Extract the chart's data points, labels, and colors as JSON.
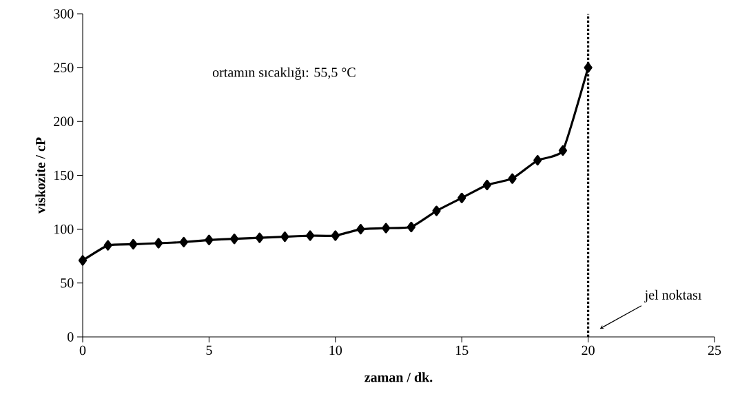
{
  "chart_data": {
    "type": "line",
    "xlabel": "zaman / dk.",
    "ylabel": "viskozite / cP",
    "x": [
      0,
      1,
      2,
      3,
      4,
      5,
      6,
      7,
      8,
      9,
      10,
      11,
      12,
      13,
      14,
      15,
      16,
      17,
      18,
      19,
      20
    ],
    "xlim": [
      0,
      25
    ],
    "xticks": [
      0,
      5,
      10,
      15,
      20,
      25
    ],
    "ylim": [
      0,
      300
    ],
    "yticks": [
      0,
      50,
      100,
      150,
      200,
      250,
      300
    ],
    "series": [
      {
        "color": "#000000",
        "marker": "diamond",
        "line_style": "solid",
        "values": [
          71,
          85,
          86,
          87,
          88,
          90,
          91,
          92,
          93,
          94,
          94,
          100,
          101,
          102,
          117,
          129,
          141,
          147,
          164,
          173,
          250
        ]
      }
    ],
    "ref_lines": [
      {
        "axis": "x",
        "value": 20,
        "label": "jel noktası",
        "line_style": "dotted",
        "color": "#000000"
      }
    ],
    "annotations": [
      "ortamın sıcaklığı: 55,5 °C"
    ],
    "grid": false
  }
}
